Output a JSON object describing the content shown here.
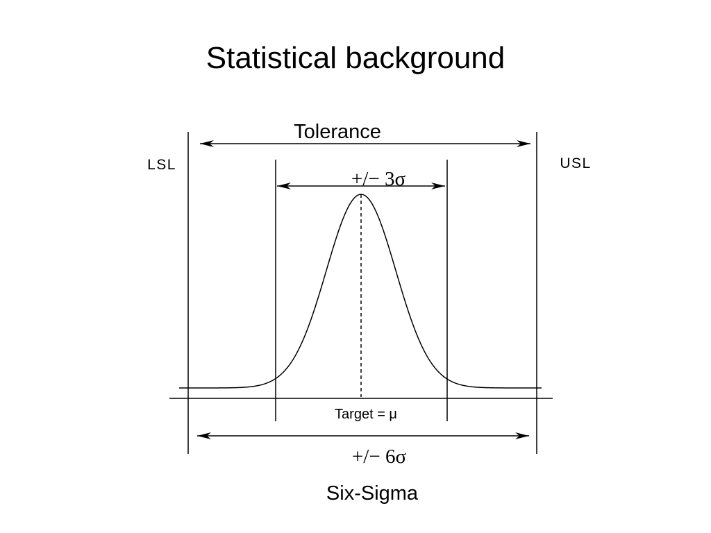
{
  "slide": {
    "title": "Statistical background",
    "caption": "Six-Sigma"
  },
  "diagram": {
    "tolerance_label": "Tolerance",
    "lsl_label": "LSL",
    "usl_label": "USL",
    "three_sigma_label": "+/− 3σ",
    "six_sigma_label": "+/− 6σ",
    "target_label": "Target = μ"
  }
}
